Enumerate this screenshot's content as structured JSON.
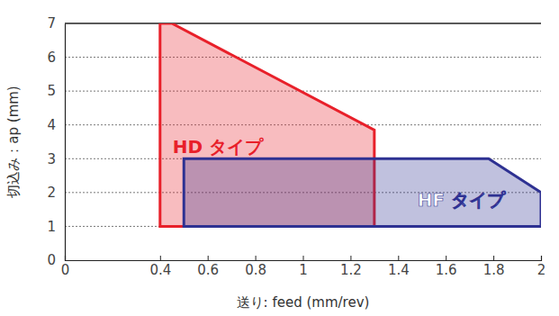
{
  "chart_data": {
    "type": "area",
    "x_label": "送り: feed (mm/rev)",
    "y_label": "切込み：ap (mm)",
    "series": [
      {
        "name": "HD タイプ",
        "color": "#e8202a",
        "x": [
          0.4,
          0.4,
          0.45,
          1.3,
          1.3
        ],
        "values": [
          1,
          7,
          7,
          3.85,
          1
        ]
      },
      {
        "name": "HF タイプ",
        "color": "#2e3192",
        "x": [
          0.5,
          0.5,
          1.78,
          2,
          2
        ],
        "values": [
          1,
          3,
          3,
          2,
          1
        ]
      }
    ],
    "xlim": [
      0,
      2
    ],
    "xticks": [
      0,
      0.4,
      0.6,
      0.8,
      1,
      1.2,
      1.4,
      1.6,
      1.8,
      2
    ],
    "ylim": [
      0,
      7
    ],
    "yticks": [
      0,
      1,
      2,
      3,
      4,
      5,
      6,
      7
    ],
    "grid": true
  }
}
